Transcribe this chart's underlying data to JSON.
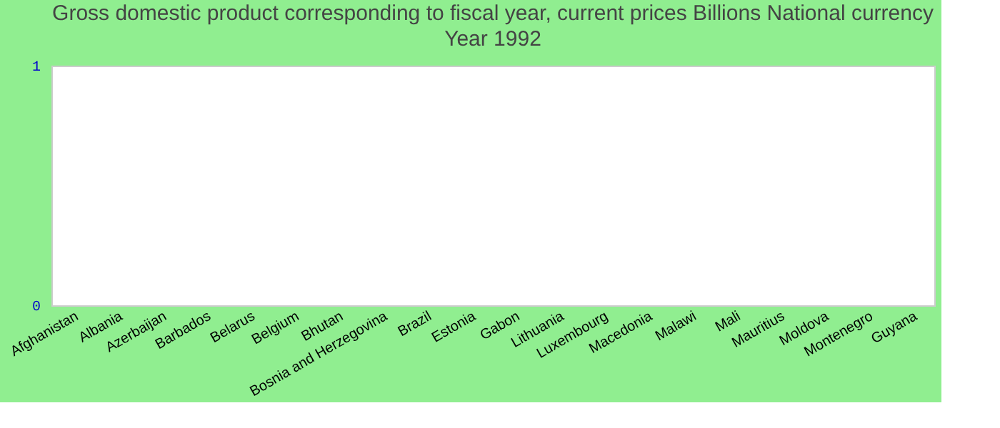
{
  "chart_data": {
    "type": "bar",
    "title": "Gross domestic product corresponding to fiscal year, current prices Billions National currency",
    "subtitle": "Year 1992",
    "categories": [
      "Afghanistan",
      "Albania",
      "Azerbaijan",
      "Barbados",
      "Belarus",
      "Belgium",
      "Bhutan",
      "Bosnia and Herzegovina",
      "Brazil",
      "Estonia",
      "Gabon",
      "Lithuania",
      "Luxembourg",
      "Macedonia",
      "Malawi",
      "Mali",
      "Mauritius",
      "Moldova",
      "Montenegro",
      "Guyana"
    ],
    "values": [
      0,
      0,
      0,
      0,
      0,
      0,
      0,
      0,
      0,
      0,
      0,
      0,
      0,
      0,
      0,
      0,
      0,
      0,
      0,
      0
    ],
    "ylim": [
      0,
      1
    ],
    "yticks": [
      0,
      1
    ],
    "grid": false
  }
}
